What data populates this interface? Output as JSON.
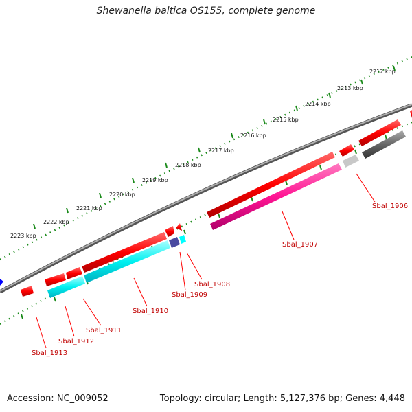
{
  "title": "Shewanella baltica OS155, complete genome",
  "footer": {
    "accession": "Accession: NC_009052",
    "summary": "Topology: circular; Length: 5,127,376 bp; Genes: 4,448"
  },
  "ticks": [
    "2212 kbp",
    "2213 kbp",
    "2214 kbp",
    "2215 kbp",
    "2216 kbp",
    "2217 kbp",
    "2218 kbp",
    "2219 kbp",
    "2220 kbp",
    "2221 kbp",
    "2222 kbp",
    "2223 kbp"
  ],
  "gene_labels": [
    "Sbal_1906",
    "Sbal_1907",
    "Sbal_1908",
    "Sbal_1909",
    "Sbal_1910",
    "Sbal_1911",
    "Sbal_1912",
    "Sbal_1913"
  ],
  "colors": {
    "forward": "#ff0000",
    "reverse_pink": "#ff1493",
    "reverse_cyan": "#00ffff",
    "dark_grey": "#606060",
    "light_grey": "#c8c8c8",
    "navy": "#4a4aa0",
    "tick_green": "#1a8a1a",
    "label_red": "#c00000",
    "backbone": "#808080"
  }
}
